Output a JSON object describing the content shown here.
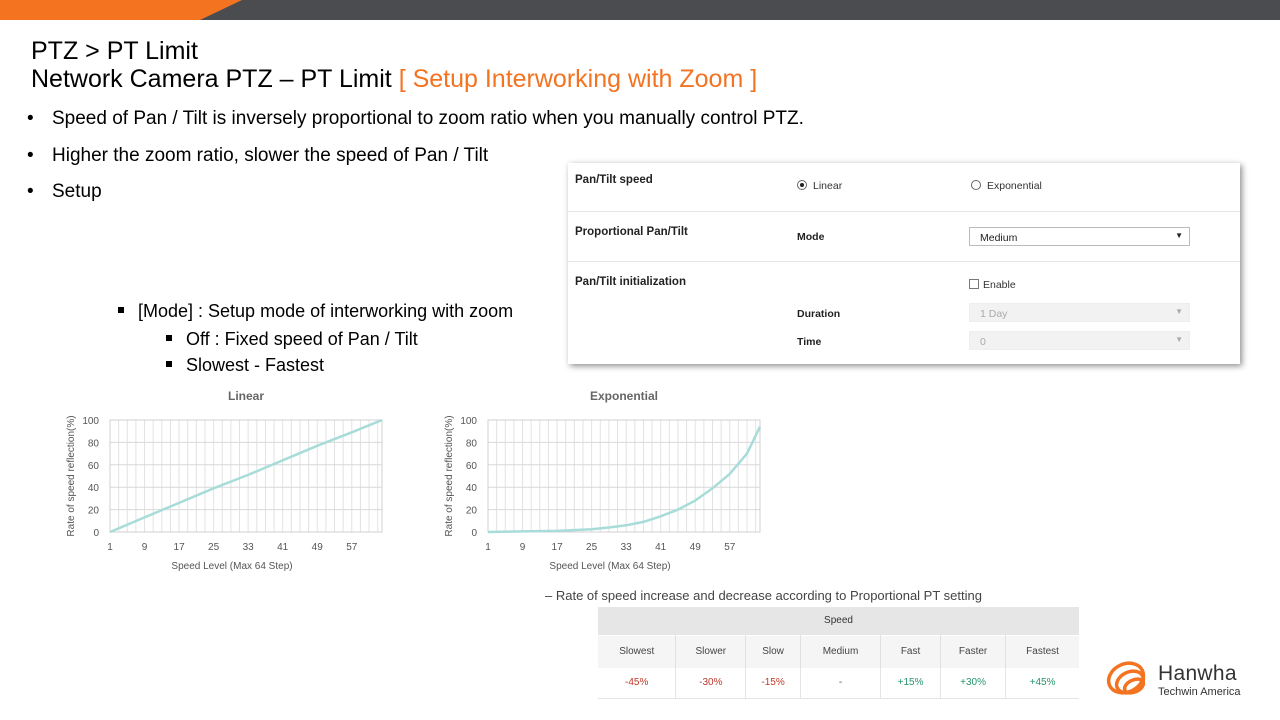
{
  "slide": {
    "title_line1": "PTZ > PT Limit",
    "title_line2_main": "Network Camera PTZ – PT Limit ",
    "title_line2_accent": "[ Setup Interworking with Zoom ]",
    "bullets": [
      "Speed of Pan / Tilt is inversely proportional to zoom ratio when you manually  control PTZ.",
      "Higher the zoom ratio, slower the speed of Pan / Tilt",
      "Setup"
    ],
    "bullet_marker": "•",
    "sub_bullets": [
      "[Mode] : Setup mode of interworking with zoom",
      "Off : Fixed speed of Pan / Tilt",
      "Slowest - Fastest"
    ],
    "note": "–    Rate of speed increase and decrease according to Proportional PT setting",
    "accent_color": "#f37321"
  },
  "settings": {
    "pan_tilt_speed_label": "Pan/Tilt speed",
    "radio_linear": "Linear",
    "radio_exponential": "Exponential",
    "selected_speed": "Linear",
    "proportional_label": "Proportional Pan/Tilt",
    "mode_label": "Mode",
    "mode_value": "Medium",
    "init_label": "Pan/Tilt initialization",
    "enable_label": "Enable",
    "enable_checked": false,
    "duration_label": "Duration",
    "duration_value": "1 Day",
    "time_label": "Time",
    "time_value": "0",
    "dropdown_arrow": "▼"
  },
  "chart_data": [
    {
      "type": "line",
      "title": "Linear",
      "xlabel": "Speed Level (Max 64 Step)",
      "ylabel": "Rate of speed reflection(%)",
      "xticks": [
        "1",
        "9",
        "17",
        "25",
        "33",
        "41",
        "49",
        "57"
      ],
      "yticks": [
        "0",
        "20",
        "40",
        "60",
        "80",
        "100"
      ],
      "xlim": [
        1,
        64
      ],
      "ylim": [
        0,
        100
      ],
      "grid": true,
      "line_color": "#a8dcd9",
      "x": [
        1,
        9,
        17,
        25,
        33,
        41,
        49,
        57,
        64
      ],
      "y": [
        0,
        13,
        26,
        39,
        51,
        64,
        77,
        89,
        100
      ]
    },
    {
      "type": "line",
      "title": "Exponential",
      "xlabel": "Speed Level (Max 64 Step)",
      "ylabel": "Rate of speed reflection(%)",
      "xticks": [
        "1",
        "9",
        "17",
        "25",
        "33",
        "41",
        "49",
        "57"
      ],
      "yticks": [
        "0",
        "20",
        "40",
        "60",
        "80",
        "100"
      ],
      "xlim": [
        1,
        64
      ],
      "ylim": [
        0,
        100
      ],
      "grid": true,
      "line_color": "#a8dcd9",
      "x": [
        1,
        9,
        17,
        25,
        29,
        33,
        37,
        41,
        45,
        49,
        53,
        57,
        61,
        64
      ],
      "y": [
        0,
        0.5,
        1,
        2.5,
        4,
        6,
        9,
        14,
        20,
        28,
        39,
        52,
        70,
        94
      ]
    }
  ],
  "speed_table": {
    "header": "Speed",
    "columns": [
      "Slowest",
      "Slower",
      "Slow",
      "Medium",
      "Fast",
      "Faster",
      "Fastest"
    ],
    "values": [
      "-45%",
      "-30%",
      "-15%",
      "-",
      "+15%",
      "+30%",
      "+45%"
    ],
    "negative_color": "#c0392b",
    "positive_color": "#27956b",
    "neutral_color": "#555555"
  },
  "logo": {
    "name": "Hanwha",
    "sub": "Techwin America",
    "color": "#f37321"
  }
}
